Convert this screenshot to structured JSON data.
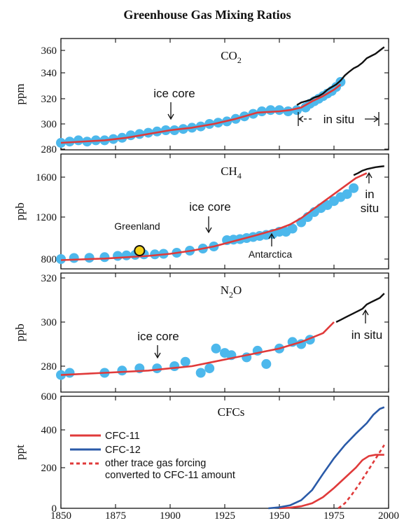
{
  "title": "Greenhouse Gas Mixing Ratios",
  "colors": {
    "icecore_dots": "#4db8ec",
    "fit_line": "#e03a3a",
    "insitu_line": "#111111",
    "greenland_fill": "#f3d21b",
    "cfc11": "#e03a3a",
    "cfc12": "#2a5aa8"
  },
  "chart_data": [
    {
      "id": "co2",
      "type": "scatter",
      "title_main": "CO",
      "title_sub": "2",
      "ylabel": "ppm",
      "xlim": [
        1850,
        2000
      ],
      "ylim": [
        280,
        368
      ],
      "yticks": [
        "280",
        "300",
        "320",
        "340",
        "360"
      ],
      "annotations": {
        "icecore": "ice core",
        "insitu": "in situ"
      },
      "series": [
        {
          "kind": "icecore_points",
          "x": [
            1850,
            1854,
            1858,
            1862,
            1866,
            1870,
            1874,
            1878,
            1882,
            1886,
            1890,
            1894,
            1898,
            1902,
            1906,
            1910,
            1914,
            1918,
            1922,
            1926,
            1930,
            1934,
            1938,
            1942,
            1946,
            1950,
            1954,
            1958,
            1962,
            1964,
            1966,
            1968,
            1970,
            1972,
            1974,
            1976,
            1978
          ],
          "y": [
            285,
            286,
            287,
            286,
            287,
            287,
            288,
            289,
            291,
            292,
            293,
            294,
            295,
            295,
            296,
            297,
            298,
            300,
            301,
            302,
            304,
            306,
            308,
            310,
            311,
            311,
            310,
            311,
            313,
            316,
            318,
            320,
            322,
            324,
            326,
            329,
            333
          ]
        },
        {
          "kind": "fit_line",
          "x": [
            1850,
            1870,
            1880,
            1890,
            1900,
            1910,
            1920,
            1930,
            1940,
            1950,
            1955,
            1960,
            1965,
            1970,
            1975,
            1978
          ],
          "y": [
            285,
            287,
            289,
            292,
            295,
            297,
            300,
            304,
            309,
            310,
            311,
            313,
            318,
            322,
            327,
            331
          ]
        },
        {
          "kind": "insitu_line",
          "x": [
            1958,
            1960,
            1962,
            1964,
            1966,
            1968,
            1970,
            1972,
            1974,
            1976,
            1978,
            1980,
            1982,
            1984,
            1986,
            1988,
            1990,
            1992,
            1994,
            1996,
            1998
          ],
          "y": [
            315,
            317,
            318,
            319,
            321,
            322,
            324,
            327,
            329,
            331,
            334,
            338,
            341,
            344,
            346,
            349,
            353,
            355,
            357,
            360,
            363
          ]
        }
      ]
    },
    {
      "id": "ch4",
      "type": "scatter",
      "title_main": "CH",
      "title_sub": "4",
      "ylabel": "ppb",
      "xlim": [
        1850,
        2000
      ],
      "ylim": [
        760,
        1760
      ],
      "yticks": [
        "800",
        "1200",
        "1600"
      ],
      "annotations": {
        "icecore": "ice core",
        "insitu_1": "in",
        "insitu_2": "situ",
        "greenland": "Greenland",
        "antarctica": "Antarctica"
      },
      "series": [
        {
          "kind": "icecore_points",
          "x": [
            1850,
            1856,
            1863,
            1870,
            1876,
            1880,
            1884,
            1888,
            1893,
            1897,
            1903,
            1909,
            1915,
            1920,
            1926,
            1929,
            1932,
            1935,
            1938,
            1941,
            1944,
            1947,
            1950,
            1953,
            1956,
            1960,
            1963,
            1966,
            1969,
            1972,
            1975,
            1978,
            1981,
            1984
          ],
          "y": [
            800,
            810,
            812,
            818,
            830,
            835,
            840,
            845,
            845,
            850,
            860,
            880,
            900,
            920,
            980,
            985,
            990,
            1000,
            1010,
            1020,
            1030,
            1040,
            1060,
            1060,
            1090,
            1150,
            1200,
            1250,
            1290,
            1320,
            1360,
            1400,
            1430,
            1490
          ]
        },
        {
          "kind": "fit_line",
          "x": [
            1850,
            1870,
            1890,
            1900,
            1910,
            1920,
            1930,
            1940,
            1950,
            1955,
            1960,
            1965,
            1970,
            1975,
            1980,
            1985,
            1990
          ],
          "y": [
            790,
            805,
            830,
            850,
            880,
            920,
            975,
            1030,
            1090,
            1130,
            1190,
            1270,
            1350,
            1430,
            1510,
            1590,
            1640
          ]
        },
        {
          "kind": "insitu_line",
          "x": [
            1984,
            1986,
            1988,
            1990,
            1992,
            1994,
            1996,
            1998
          ],
          "y": [
            1620,
            1640,
            1665,
            1680,
            1690,
            1700,
            1705,
            1710
          ]
        },
        {
          "kind": "greenland_point",
          "x": [
            1886
          ],
          "y": [
            880
          ]
        }
      ]
    },
    {
      "id": "n2o",
      "type": "scatter",
      "title_main": "N",
      "title_sub": "2",
      "title_tail": "O",
      "ylabel": "ppb",
      "xlim": [
        1850,
        2000
      ],
      "ylim": [
        270,
        320
      ],
      "yticks": [
        "280",
        "300",
        "320"
      ],
      "annotations": {
        "icecore": "ice core",
        "insitu": "in situ"
      },
      "series": [
        {
          "kind": "icecore_points",
          "x": [
            1850,
            1854,
            1870,
            1878,
            1886,
            1894,
            1902,
            1907,
            1914,
            1918,
            1921,
            1925,
            1928,
            1935,
            1940,
            1944,
            1950,
            1956,
            1960,
            1964
          ],
          "y": [
            276,
            277,
            277,
            278,
            279,
            279,
            280,
            282,
            277,
            279,
            288,
            286,
            285,
            284,
            287,
            281,
            288,
            291,
            290,
            292
          ]
        },
        {
          "kind": "fit_line",
          "x": [
            1850,
            1870,
            1890,
            1900,
            1910,
            1920,
            1930,
            1940,
            1950,
            1960,
            1970,
            1975
          ],
          "y": [
            276,
            277,
            278,
            279,
            280,
            282,
            284,
            286,
            288,
            291,
            295,
            300
          ]
        },
        {
          "kind": "insitu_line",
          "x": [
            1976,
            1978,
            1980,
            1982,
            1984,
            1986,
            1988,
            1990,
            1992,
            1994,
            1996,
            1998
          ],
          "y": [
            300,
            301,
            302,
            303,
            304,
            305,
            306,
            308,
            309,
            310,
            311,
            313
          ]
        }
      ]
    },
    {
      "id": "cfcs",
      "type": "line",
      "title": "CFCs",
      "ylabel": "ppt",
      "xlim": [
        1850,
        2000
      ],
      "ylim": [
        0,
        600
      ],
      "yticks": [
        "0",
        "200",
        "400",
        "600"
      ],
      "xticks": [
        "1850",
        "1875",
        "1900",
        "1925",
        "1950",
        "1975",
        "2000"
      ],
      "legend": [
        "CFC-11",
        "CFC-12",
        "other trace gas forcing",
        "converted to CFC-11 amount"
      ],
      "series": [
        {
          "name": "CFC-11",
          "x": [
            1950,
            1955,
            1960,
            1965,
            1970,
            1975,
            1980,
            1985,
            1988,
            1991,
            1994,
            1996,
            1998
          ],
          "y": [
            0,
            3,
            10,
            25,
            55,
            100,
            150,
            200,
            240,
            262,
            268,
            268,
            268
          ]
        },
        {
          "name": "CFC-12",
          "x": [
            1945,
            1950,
            1955,
            1960,
            1965,
            1970,
            1975,
            1980,
            1985,
            1990,
            1993,
            1996,
            1998
          ],
          "y": [
            0,
            5,
            15,
            40,
            90,
            170,
            250,
            320,
            380,
            440,
            490,
            525,
            535
          ]
        },
        {
          "name": "other trace gas forcing converted to CFC-11 amount",
          "x": [
            1977,
            1980,
            1983,
            1986,
            1989,
            1992,
            1995,
            1998
          ],
          "y": [
            0,
            25,
            65,
            110,
            160,
            210,
            265,
            320
          ]
        }
      ]
    }
  ]
}
